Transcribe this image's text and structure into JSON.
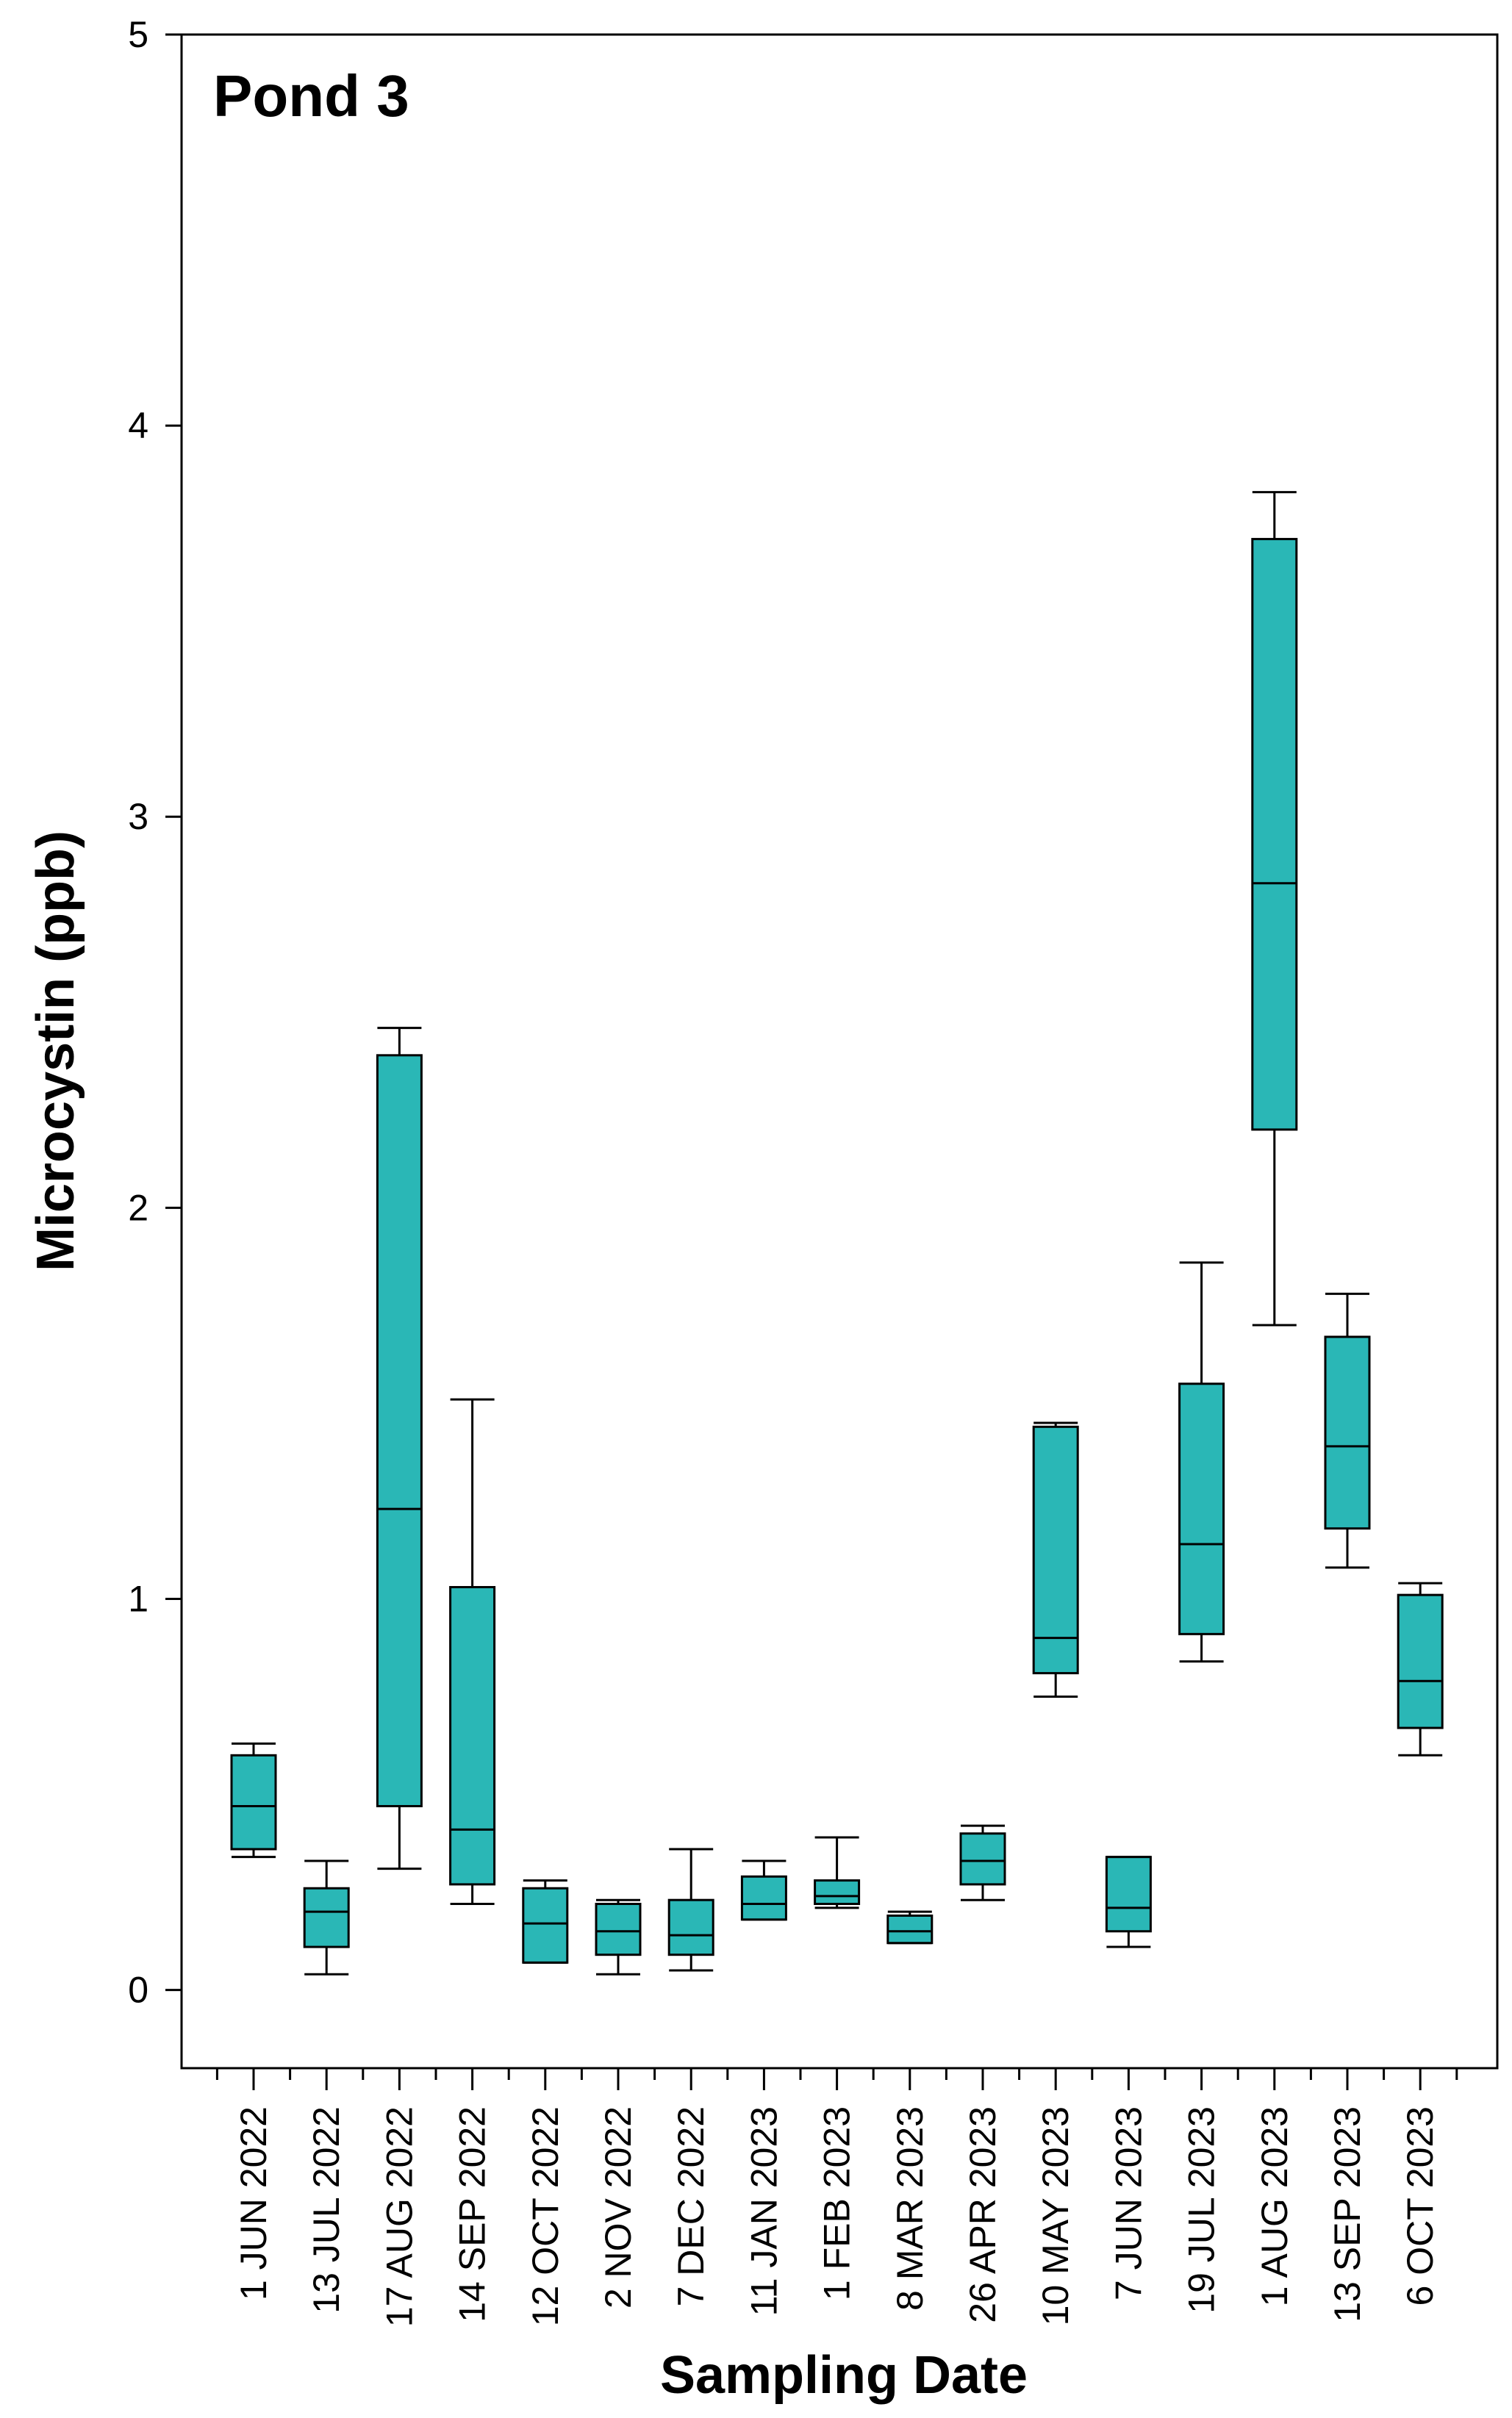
{
  "chart_data": {
    "type": "box",
    "title": "Pond 3",
    "xlabel": "Sampling Date",
    "ylabel": "Microcystin (ppb)",
    "ylim": [
      -0.2,
      5
    ],
    "yticks": [
      0,
      1,
      2,
      3,
      4,
      5
    ],
    "box_color": "#2ab7b6",
    "categories": [
      "1 JUN 2022",
      "13 JUL 2022",
      "17 AUG 2022",
      "14 SEP 2022",
      "12 OCT 2022",
      "2 NOV 2022",
      "7 DEC 2022",
      "11 JAN 2023",
      "1 FEB 2023",
      "8 MAR 2023",
      "26 APR 2023",
      "10 MAY 2023",
      "7 JUN 2023",
      "19 JUL 2023",
      "1 AUG 2023",
      "13 SEP 2023",
      "6 OCT 2023"
    ],
    "boxes": [
      {
        "min": 0.34,
        "q1": 0.36,
        "median": 0.47,
        "q3": 0.6,
        "max": 0.63
      },
      {
        "min": 0.04,
        "q1": 0.11,
        "median": 0.2,
        "q3": 0.26,
        "max": 0.33
      },
      {
        "min": 0.31,
        "q1": 0.47,
        "median": 1.23,
        "q3": 2.39,
        "max": 2.46
      },
      {
        "min": 0.22,
        "q1": 0.27,
        "median": 0.41,
        "q3": 1.03,
        "max": 1.51
      },
      {
        "min": 0.07,
        "q1": 0.07,
        "median": 0.17,
        "q3": 0.26,
        "max": 0.28
      },
      {
        "min": 0.04,
        "q1": 0.09,
        "median": 0.15,
        "q3": 0.22,
        "max": 0.23
      },
      {
        "min": 0.05,
        "q1": 0.09,
        "median": 0.14,
        "q3": 0.23,
        "max": 0.36
      },
      {
        "min": 0.18,
        "q1": 0.18,
        "median": 0.22,
        "q3": 0.29,
        "max": 0.33
      },
      {
        "min": 0.21,
        "q1": 0.22,
        "median": 0.24,
        "q3": 0.28,
        "max": 0.39
      },
      {
        "min": 0.12,
        "q1": 0.12,
        "median": 0.15,
        "q3": 0.19,
        "max": 0.2
      },
      {
        "min": 0.23,
        "q1": 0.27,
        "median": 0.33,
        "q3": 0.4,
        "max": 0.42
      },
      {
        "min": 0.75,
        "q1": 0.81,
        "median": 0.9,
        "q3": 1.44,
        "max": 1.45
      },
      {
        "min": 0.11,
        "q1": 0.15,
        "median": 0.21,
        "q3": 0.34,
        "max": 0.34
      },
      {
        "min": 0.84,
        "q1": 0.91,
        "median": 1.14,
        "q3": 1.55,
        "max": 1.86
      },
      {
        "min": 1.7,
        "q1": 2.2,
        "median": 2.83,
        "q3": 3.71,
        "max": 3.83
      },
      {
        "min": 1.08,
        "q1": 1.18,
        "median": 1.39,
        "q3": 1.67,
        "max": 1.78
      },
      {
        "min": 0.6,
        "q1": 0.67,
        "median": 0.79,
        "q3": 1.01,
        "max": 1.04
      }
    ]
  }
}
